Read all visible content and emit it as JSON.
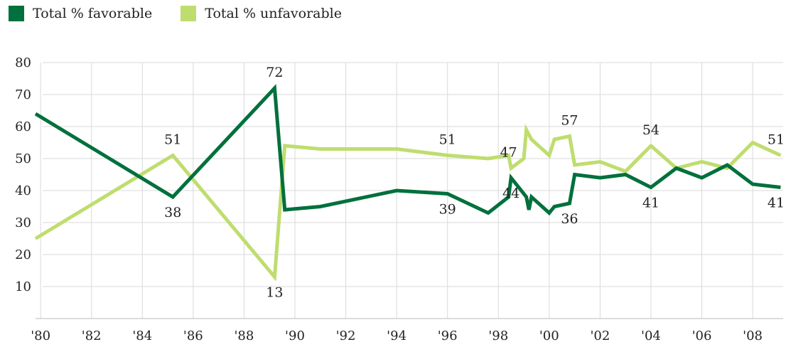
{
  "legend": {
    "favorable": "Total % favorable",
    "unfavorable": "Total % unfavorable"
  },
  "colors": {
    "favorable": "#00703c",
    "unfavorable": "#bfdd6e",
    "grid": "#d9d9d9"
  },
  "chart_data": {
    "type": "line",
    "title": "",
    "xlabel": "",
    "ylabel": "",
    "xlim": [
      1979.8,
      2009.2
    ],
    "ylim": [
      0,
      80
    ],
    "x_ticks": [
      1980,
      1982,
      1984,
      1986,
      1988,
      1990,
      1992,
      1994,
      1996,
      1998,
      2000,
      2002,
      2004,
      2006,
      2008
    ],
    "x_tick_labels": [
      "'80",
      "'82",
      "'84",
      "'86",
      "'88",
      "'90",
      "'92",
      "'94",
      "'96",
      "'98",
      "'00",
      "'02",
      "'04",
      "'06",
      "'08"
    ],
    "y_ticks": [
      10,
      20,
      30,
      40,
      50,
      60,
      70,
      80
    ],
    "y_tick_labels": [
      "10",
      "20",
      "30",
      "40",
      "50",
      "60",
      "70",
      "80"
    ],
    "grid": true,
    "legend_position": "top-left",
    "series": [
      {
        "name": "Total % favorable",
        "color": "#00703c",
        "x": [
          1979.8,
          1985.2,
          1989.2,
          1989.6,
          1991,
          1994,
          1996,
          1997.6,
          1998.4,
          1998.5,
          1999.1,
          1999.2,
          1999.3,
          2000,
          2000.2,
          2000.8,
          2001,
          2002,
          2003,
          2004,
          2005,
          2006,
          2007,
          2008,
          2009.1
        ],
        "y": [
          64,
          38,
          72,
          34,
          35,
          40,
          39,
          33,
          38,
          44,
          38,
          34,
          38,
          33,
          35,
          36,
          45,
          44,
          45,
          41,
          47,
          44,
          48,
          42,
          41
        ]
      },
      {
        "name": "Total % unfavorable",
        "color": "#bfdd6e",
        "x": [
          1979.8,
          1985.2,
          1989.2,
          1989.6,
          1991,
          1994,
          1996,
          1997.6,
          1998.4,
          1998.5,
          1999,
          1999.1,
          1999.3,
          2000,
          2000.2,
          2000.8,
          2001,
          2002,
          2003,
          2004,
          2005,
          2006,
          2007,
          2008,
          2009.1
        ],
        "y": [
          25,
          51,
          13,
          54,
          53,
          53,
          51,
          50,
          51,
          47,
          50,
          59,
          56,
          51,
          56,
          57,
          48,
          49,
          46,
          54,
          47,
          49,
          47,
          55,
          51
        ]
      }
    ],
    "annotations": [
      {
        "text": "72",
        "x": 1989.2,
        "y": 72,
        "pos": "above"
      },
      {
        "text": "51",
        "x": 1985.2,
        "y": 51,
        "pos": "above"
      },
      {
        "text": "38",
        "x": 1985.2,
        "y": 38,
        "pos": "below"
      },
      {
        "text": "13",
        "x": 1989.2,
        "y": 13,
        "pos": "below"
      },
      {
        "text": "51",
        "x": 1996,
        "y": 51,
        "pos": "above"
      },
      {
        "text": "39",
        "x": 1996,
        "y": 39,
        "pos": "below"
      },
      {
        "text": "47",
        "x": 1998.4,
        "y": 47,
        "pos": "above"
      },
      {
        "text": "44",
        "x": 1998.5,
        "y": 44,
        "pos": "below"
      },
      {
        "text": "57",
        "x": 2000.8,
        "y": 57,
        "pos": "above"
      },
      {
        "text": "36",
        "x": 2000.8,
        "y": 36,
        "pos": "below"
      },
      {
        "text": "54",
        "x": 2004,
        "y": 54,
        "pos": "above"
      },
      {
        "text": "41",
        "x": 2004,
        "y": 41,
        "pos": "below"
      },
      {
        "text": "51",
        "x": 2009.1,
        "y": 51,
        "pos": "above"
      },
      {
        "text": "41",
        "x": 2009.1,
        "y": 41,
        "pos": "below"
      }
    ]
  }
}
